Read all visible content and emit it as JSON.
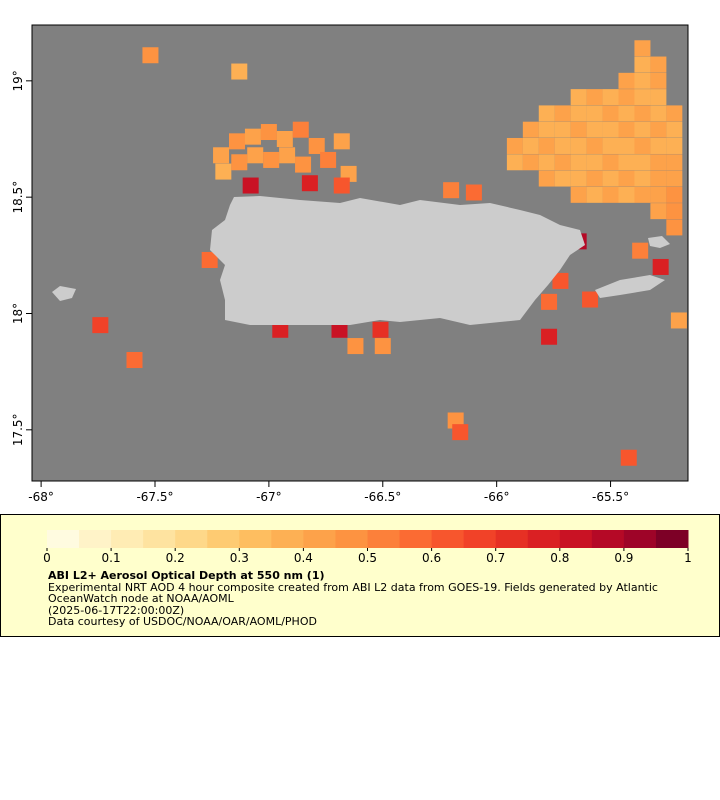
{
  "map": {
    "xlim": [
      -68.04,
      -65.16
    ],
    "ylim": [
      17.28,
      19.24
    ],
    "xticks": [
      {
        "value": -68,
        "label": "-68°"
      },
      {
        "value": -67.5,
        "label": "-67.5°"
      },
      {
        "value": -67,
        "label": "-67°"
      },
      {
        "value": -66.5,
        "label": "-66.5°"
      },
      {
        "value": -66,
        "label": "-66°"
      },
      {
        "value": -65.5,
        "label": "-65.5°"
      }
    ],
    "yticks": [
      {
        "value": 17.5,
        "label": "17.5°"
      },
      {
        "value": 18,
        "label": "18°"
      },
      {
        "value": 18.5,
        "label": "18.5°"
      },
      {
        "value": 19,
        "label": "19°"
      }
    ],
    "cells": [
      {
        "lon": -67.21,
        "lat": 18.68,
        "aod": 0.4
      },
      {
        "lon": -67.14,
        "lat": 18.74,
        "aod": 0.45
      },
      {
        "lon": -67.07,
        "lat": 18.76,
        "aod": 0.4
      },
      {
        "lon": -67.0,
        "lat": 18.78,
        "aod": 0.45
      },
      {
        "lon": -66.93,
        "lat": 18.75,
        "aod": 0.4
      },
      {
        "lon": -66.86,
        "lat": 18.79,
        "aod": 0.5
      },
      {
        "lon": -66.79,
        "lat": 18.72,
        "aod": 0.45
      },
      {
        "lon": -66.68,
        "lat": 18.74,
        "aod": 0.4
      },
      {
        "lon": -67.2,
        "lat": 18.61,
        "aod": 0.35
      },
      {
        "lon": -67.13,
        "lat": 18.65,
        "aod": 0.45
      },
      {
        "lon": -67.06,
        "lat": 18.68,
        "aod": 0.4
      },
      {
        "lon": -66.99,
        "lat": 18.66,
        "aod": 0.45
      },
      {
        "lon": -66.92,
        "lat": 18.68,
        "aod": 0.4
      },
      {
        "lon": -66.85,
        "lat": 18.64,
        "aod": 0.45
      },
      {
        "lon": -66.74,
        "lat": 18.66,
        "aod": 0.5
      },
      {
        "lon": -66.65,
        "lat": 18.6,
        "aod": 0.4
      },
      {
        "lon": -67.08,
        "lat": 18.55,
        "aod": 0.8
      },
      {
        "lon": -66.82,
        "lat": 18.56,
        "aod": 0.75
      },
      {
        "lon": -66.68,
        "lat": 18.55,
        "aod": 0.6
      },
      {
        "lon": -67.52,
        "lat": 19.11,
        "aod": 0.45
      },
      {
        "lon": -67.13,
        "lat": 19.04,
        "aod": 0.35
      },
      {
        "lon": -66.2,
        "lat": 18.53,
        "aod": 0.5
      },
      {
        "lon": -66.1,
        "lat": 18.52,
        "aod": 0.55
      },
      {
        "lon": -66.95,
        "lat": 17.93,
        "aod": 0.75
      },
      {
        "lon": -66.69,
        "lat": 17.93,
        "aod": 0.8
      },
      {
        "lon": -66.51,
        "lat": 17.93,
        "aod": 0.7
      },
      {
        "lon": -66.62,
        "lat": 17.86,
        "aod": 0.45
      },
      {
        "lon": -66.5,
        "lat": 17.86,
        "aod": 0.45
      },
      {
        "lon": -67.26,
        "lat": 18.23,
        "aod": 0.55
      },
      {
        "lon": -65.72,
        "lat": 18.14,
        "aod": 0.6
      },
      {
        "lon": -65.77,
        "lat": 18.05,
        "aod": 0.55
      },
      {
        "lon": -65.77,
        "lat": 17.9,
        "aod": 0.75
      },
      {
        "lon": -65.59,
        "lat": 18.06,
        "aod": 0.6
      },
      {
        "lon": -65.64,
        "lat": 18.31,
        "aod": 0.85
      },
      {
        "lon": -65.37,
        "lat": 18.27,
        "aod": 0.5
      },
      {
        "lon": -65.28,
        "lat": 18.2,
        "aod": 0.75
      },
      {
        "lon": -65.2,
        "lat": 17.97,
        "aod": 0.4
      },
      {
        "lon": -66.18,
        "lat": 17.54,
        "aod": 0.45
      },
      {
        "lon": -66.16,
        "lat": 17.49,
        "aod": 0.6
      },
      {
        "lon": -67.59,
        "lat": 17.8,
        "aod": 0.55
      },
      {
        "lon": -67.74,
        "lat": 17.95,
        "aod": 0.65
      },
      {
        "lon": -65.42,
        "lat": 17.38,
        "aod": 0.6
      },
      {
        "lon": -65.36,
        "lat": 19.14,
        "aod": 0.4
      },
      {
        "lon": -65.36,
        "lat": 19.07,
        "aod": 0.35
      },
      {
        "lon": -65.29,
        "lat": 19.07,
        "aod": 0.4
      },
      {
        "lon": -65.43,
        "lat": 19.0,
        "aod": 0.4
      },
      {
        "lon": -65.36,
        "lat": 19.0,
        "aod": 0.35
      },
      {
        "lon": -65.29,
        "lat": 19.0,
        "aod": 0.4
      },
      {
        "lon": -65.64,
        "lat": 18.93,
        "aod": 0.35
      },
      {
        "lon": -65.57,
        "lat": 18.93,
        "aod": 0.4
      },
      {
        "lon": -65.5,
        "lat": 18.93,
        "aod": 0.35
      },
      {
        "lon": -65.43,
        "lat": 18.93,
        "aod": 0.4
      },
      {
        "lon": -65.36,
        "lat": 18.93,
        "aod": 0.35
      },
      {
        "lon": -65.29,
        "lat": 18.93,
        "aod": 0.35
      },
      {
        "lon": -65.78,
        "lat": 18.86,
        "aod": 0.35
      },
      {
        "lon": -65.71,
        "lat": 18.86,
        "aod": 0.4
      },
      {
        "lon": -65.64,
        "lat": 18.86,
        "aod": 0.35
      },
      {
        "lon": -65.57,
        "lat": 18.86,
        "aod": 0.35
      },
      {
        "lon": -65.5,
        "lat": 18.86,
        "aod": 0.4
      },
      {
        "lon": -65.43,
        "lat": 18.86,
        "aod": 0.35
      },
      {
        "lon": -65.36,
        "lat": 18.86,
        "aod": 0.4
      },
      {
        "lon": -65.29,
        "lat": 18.86,
        "aod": 0.35
      },
      {
        "lon": -65.22,
        "lat": 18.86,
        "aod": 0.4
      },
      {
        "lon": -65.85,
        "lat": 18.79,
        "aod": 0.4
      },
      {
        "lon": -65.78,
        "lat": 18.79,
        "aod": 0.35
      },
      {
        "lon": -65.71,
        "lat": 18.79,
        "aod": 0.35
      },
      {
        "lon": -65.64,
        "lat": 18.79,
        "aod": 0.4
      },
      {
        "lon": -65.57,
        "lat": 18.79,
        "aod": 0.35
      },
      {
        "lon": -65.5,
        "lat": 18.79,
        "aod": 0.35
      },
      {
        "lon": -65.43,
        "lat": 18.79,
        "aod": 0.4
      },
      {
        "lon": -65.36,
        "lat": 18.79,
        "aod": 0.35
      },
      {
        "lon": -65.29,
        "lat": 18.79,
        "aod": 0.4
      },
      {
        "lon": -65.22,
        "lat": 18.79,
        "aod": 0.35
      },
      {
        "lon": -65.92,
        "lat": 18.72,
        "aod": 0.4
      },
      {
        "lon": -65.85,
        "lat": 18.72,
        "aod": 0.35
      },
      {
        "lon": -65.78,
        "lat": 18.72,
        "aod": 0.4
      },
      {
        "lon": -65.71,
        "lat": 18.72,
        "aod": 0.35
      },
      {
        "lon": -65.64,
        "lat": 18.72,
        "aod": 0.35
      },
      {
        "lon": -65.57,
        "lat": 18.72,
        "aod": 0.4
      },
      {
        "lon": -65.5,
        "lat": 18.72,
        "aod": 0.35
      },
      {
        "lon": -65.43,
        "lat": 18.72,
        "aod": 0.35
      },
      {
        "lon": -65.36,
        "lat": 18.72,
        "aod": 0.4
      },
      {
        "lon": -65.29,
        "lat": 18.72,
        "aod": 0.35
      },
      {
        "lon": -65.22,
        "lat": 18.72,
        "aod": 0.35
      },
      {
        "lon": -65.92,
        "lat": 18.65,
        "aod": 0.35
      },
      {
        "lon": -65.85,
        "lat": 18.65,
        "aod": 0.4
      },
      {
        "lon": -65.78,
        "lat": 18.65,
        "aod": 0.35
      },
      {
        "lon": -65.71,
        "lat": 18.65,
        "aod": 0.4
      },
      {
        "lon": -65.64,
        "lat": 18.65,
        "aod": 0.35
      },
      {
        "lon": -65.57,
        "lat": 18.65,
        "aod": 0.35
      },
      {
        "lon": -65.5,
        "lat": 18.65,
        "aod": 0.4
      },
      {
        "lon": -65.43,
        "lat": 18.65,
        "aod": 0.35
      },
      {
        "lon": -65.36,
        "lat": 18.65,
        "aod": 0.35
      },
      {
        "lon": -65.29,
        "lat": 18.65,
        "aod": 0.4
      },
      {
        "lon": -65.22,
        "lat": 18.65,
        "aod": 0.4
      },
      {
        "lon": -65.78,
        "lat": 18.58,
        "aod": 0.4
      },
      {
        "lon": -65.71,
        "lat": 18.58,
        "aod": 0.35
      },
      {
        "lon": -65.64,
        "lat": 18.58,
        "aod": 0.35
      },
      {
        "lon": -65.57,
        "lat": 18.58,
        "aod": 0.4
      },
      {
        "lon": -65.5,
        "lat": 18.58,
        "aod": 0.35
      },
      {
        "lon": -65.43,
        "lat": 18.58,
        "aod": 0.4
      },
      {
        "lon": -65.36,
        "lat": 18.58,
        "aod": 0.35
      },
      {
        "lon": -65.29,
        "lat": 18.58,
        "aod": 0.4
      },
      {
        "lon": -65.22,
        "lat": 18.58,
        "aod": 0.4
      },
      {
        "lon": -65.64,
        "lat": 18.51,
        "aod": 0.4
      },
      {
        "lon": -65.57,
        "lat": 18.51,
        "aod": 0.35
      },
      {
        "lon": -65.5,
        "lat": 18.51,
        "aod": 0.4
      },
      {
        "lon": -65.43,
        "lat": 18.51,
        "aod": 0.35
      },
      {
        "lon": -65.36,
        "lat": 18.51,
        "aod": 0.4
      },
      {
        "lon": -65.29,
        "lat": 18.51,
        "aod": 0.4
      },
      {
        "lon": -65.22,
        "lat": 18.51,
        "aod": 0.45
      },
      {
        "lon": -65.29,
        "lat": 18.44,
        "aod": 0.4
      },
      {
        "lon": -65.22,
        "lat": 18.44,
        "aod": 0.45
      },
      {
        "lon": -65.22,
        "lat": 18.37,
        "aod": 0.45
      }
    ]
  },
  "colorbar": {
    "lim": [
      0,
      1
    ],
    "ticks": [
      0,
      0.1,
      0.2,
      0.3,
      0.4,
      0.5,
      0.6,
      0.7,
      0.8,
      0.9,
      1
    ],
    "colors": [
      "#fffbe0",
      "#fff3c8",
      "#ffecb4",
      "#fee3a0",
      "#fed889",
      "#fecb72",
      "#febe60",
      "#fdb054",
      "#fda24a",
      "#fd9341",
      "#fc803a",
      "#fb6b33",
      "#f7562d",
      "#f14228",
      "#e63024",
      "#da2023",
      "#c91224",
      "#b50926",
      "#9e0428",
      "#7d0026"
    ]
  },
  "caption": {
    "title": "ABI L2+ Aerosol Optical Depth at 550 nm (1)",
    "description": "Experimental NRT AOD 4 hour composite created from ABI L2 data from GOES-19. Fields generated by Atlantic OceanWatch node at NOAA/AOML",
    "timestamp": "(2025-06-17T22:00:00Z)",
    "credit": "Data courtesy of USDOC/NOAA/OAR/AOML/PHOD"
  }
}
